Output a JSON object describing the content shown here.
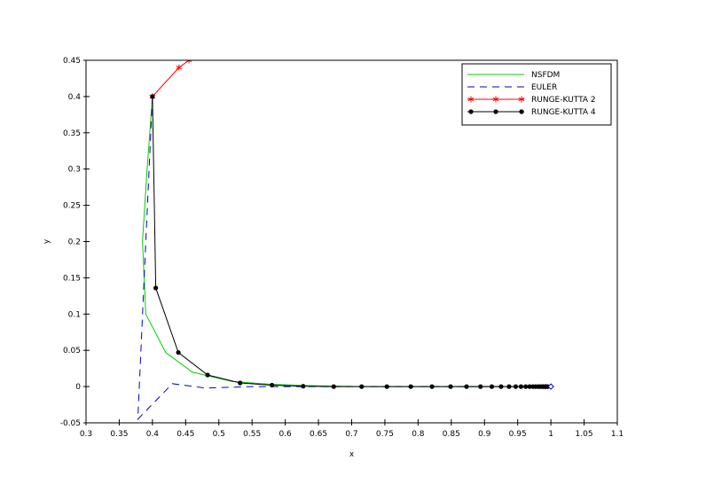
{
  "chart_data": {
    "type": "line",
    "title": "",
    "xlabel": "x",
    "ylabel": "y",
    "xlim": [
      0.3,
      1.1
    ],
    "ylim": [
      -0.05,
      0.45
    ],
    "xticks": [
      "0.3",
      "0.35",
      "0.4",
      "0.45",
      "0.5",
      "0.55",
      "0.6",
      "0.65",
      "0.7",
      "0.75",
      "0.8",
      "0.85",
      "0.9",
      "0.95",
      "1",
      "1.05",
      "1.1"
    ],
    "yticks": [
      "-0.05",
      "0",
      "0.05",
      "0.1",
      "0.15",
      "0.2",
      "0.25",
      "0.3",
      "0.35",
      "0.4",
      "0.45"
    ],
    "grid": false,
    "legend_position": "top-right",
    "series": [
      {
        "name": "NSFDM",
        "color": "#00cc00",
        "style": "solid",
        "marker": "none",
        "points": [
          [
            0.4,
            0.4
          ],
          [
            0.392,
            0.3
          ],
          [
            0.385,
            0.2
          ],
          [
            0.39,
            0.1
          ],
          [
            0.42,
            0.047
          ],
          [
            0.46,
            0.02
          ],
          [
            0.52,
            0.007
          ],
          [
            0.58,
            0.003
          ],
          [
            0.65,
            0.001
          ],
          [
            0.72,
            0.0
          ],
          [
            0.8,
            0.0
          ],
          [
            0.9,
            0.0
          ],
          [
            1.0,
            0.0
          ]
        ]
      },
      {
        "name": "EULER",
        "color": "#0000cc",
        "style": "dashed",
        "marker": "none",
        "points": [
          [
            0.4,
            0.4
          ],
          [
            0.39,
            0.2
          ],
          [
            0.378,
            -0.045
          ],
          [
            0.43,
            0.004
          ],
          [
            0.48,
            -0.002
          ],
          [
            0.55,
            0.0
          ],
          [
            0.65,
            0.0
          ],
          [
            0.75,
            0.0
          ],
          [
            0.85,
            0.0
          ],
          [
            0.95,
            0.0
          ],
          [
            1.0,
            0.0
          ]
        ]
      },
      {
        "name": "RUNGE-KUTTA 2",
        "color": "#ff0000",
        "style": "solid",
        "marker": "star",
        "points": [
          [
            0.4,
            0.4
          ],
          [
            0.44,
            0.44
          ],
          [
            0.455,
            0.45
          ]
        ]
      },
      {
        "name": "RUNGE-KUTTA 4",
        "color": "#000000",
        "style": "solid",
        "marker": "dot",
        "points": [
          [
            0.4,
            0.4
          ],
          [
            0.405,
            0.136
          ],
          [
            0.439,
            0.047
          ],
          [
            0.483,
            0.016
          ],
          [
            0.532,
            0.005
          ],
          [
            0.58,
            0.002
          ],
          [
            0.627,
            0.0005
          ],
          [
            0.673,
            0.0
          ],
          [
            0.715,
            0.0
          ],
          [
            0.753,
            0.0
          ],
          [
            0.789,
            0.0
          ],
          [
            0.821,
            0.0
          ],
          [
            0.849,
            0.0
          ],
          [
            0.873,
            0.0
          ],
          [
            0.894,
            0.0
          ],
          [
            0.911,
            0.0
          ],
          [
            0.925,
            0.0
          ],
          [
            0.937,
            0.0
          ],
          [
            0.947,
            0.0
          ],
          [
            0.955,
            0.0
          ],
          [
            0.962,
            0.0
          ],
          [
            0.968,
            0.0
          ],
          [
            0.973,
            0.0
          ],
          [
            0.977,
            0.0
          ],
          [
            0.981,
            0.0
          ],
          [
            0.984,
            0.0
          ],
          [
            0.987,
            0.0
          ],
          [
            0.989,
            0.0
          ],
          [
            0.991,
            0.0
          ],
          [
            0.993,
            0.0
          ],
          [
            0.995,
            0.0
          ]
        ]
      }
    ],
    "end_marker": {
      "x": 1.0,
      "y": 0.0,
      "color": "#0000cc",
      "shape": "diamond"
    }
  }
}
